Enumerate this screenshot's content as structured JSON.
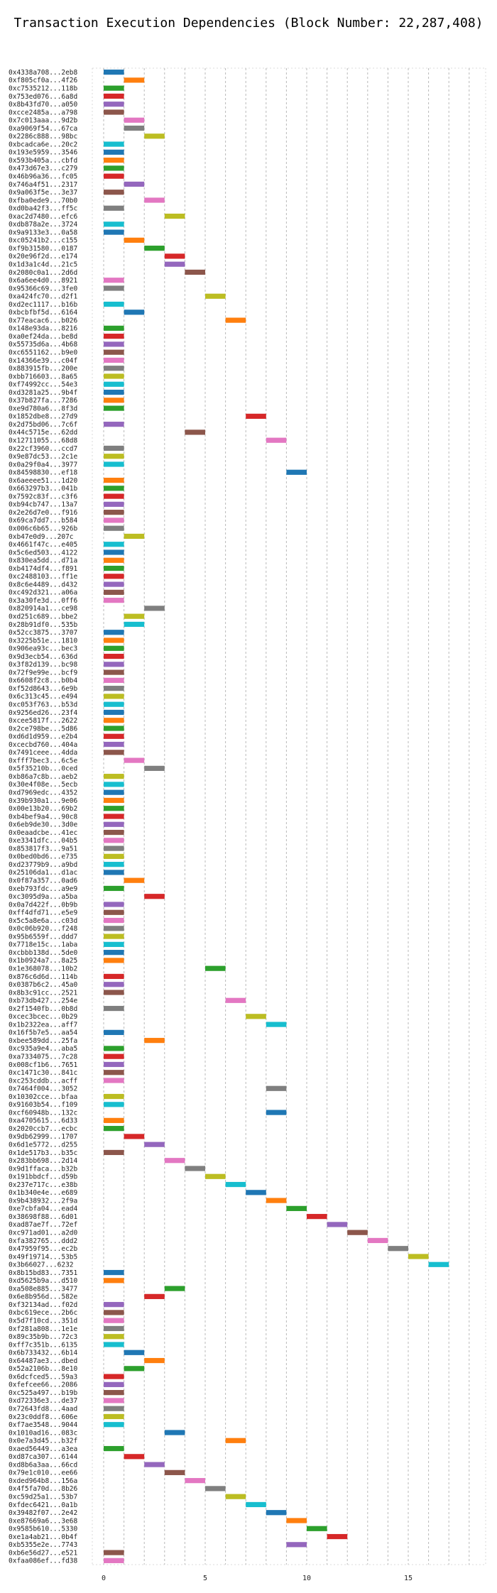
{
  "chart_data": {
    "type": "gantt",
    "title": "Transaction Execution Dependencies (Block Number: 22,287,408)",
    "xlabel": "",
    "ylabel": "",
    "xlim": [
      0,
      19
    ],
    "xticks": [
      0,
      5,
      10,
      15
    ],
    "grid": "x-dashed",
    "colors": [
      "#1f77b4",
      "#ff7f0e",
      "#2ca02c",
      "#d62728",
      "#9467bd",
      "#8c564b",
      "#e377c2",
      "#7f7f7f",
      "#bcbd22",
      "#17becf"
    ],
    "transactions": [
      {
        "label": "0x4338a708...2eb8",
        "start": 0,
        "end": 1
      },
      {
        "label": "0xf805cf0a...4f26",
        "start": 1,
        "end": 2
      },
      {
        "label": "0xc7535212...118b",
        "start": 0,
        "end": 1
      },
      {
        "label": "0x753ed076...6a8d",
        "start": 0,
        "end": 1
      },
      {
        "label": "0x8b43fd70...a050",
        "start": 0,
        "end": 1
      },
      {
        "label": "0xcce2485a...a798",
        "start": 0,
        "end": 1
      },
      {
        "label": "0x7c013aaa...9d2b",
        "start": 1,
        "end": 2
      },
      {
        "label": "0xa9069f54...67ca",
        "start": 1,
        "end": 2
      },
      {
        "label": "0x2286c888...98bc",
        "start": 2,
        "end": 3
      },
      {
        "label": "0xbcadca6e...20c2",
        "start": 0,
        "end": 1
      },
      {
        "label": "0x193e5959...3546",
        "start": 0,
        "end": 1
      },
      {
        "label": "0x593b405a...cbfd",
        "start": 0,
        "end": 1
      },
      {
        "label": "0x473d67e3...c279",
        "start": 0,
        "end": 1
      },
      {
        "label": "0x46b96a36...fc05",
        "start": 0,
        "end": 1
      },
      {
        "label": "0x746a4f51...2317",
        "start": 1,
        "end": 2
      },
      {
        "label": "0x9a063f5e...3e37",
        "start": 0,
        "end": 1
      },
      {
        "label": "0xfba0ede9...70b0",
        "start": 2,
        "end": 3
      },
      {
        "label": "0xd0ba42f3...ff5c",
        "start": 0,
        "end": 1
      },
      {
        "label": "0xac2d7480...efc6",
        "start": 3,
        "end": 4
      },
      {
        "label": "0xdb878a2e...3724",
        "start": 0,
        "end": 1
      },
      {
        "label": "0x9a9133e3...0a58",
        "start": 0,
        "end": 1
      },
      {
        "label": "0xc05241b2...c155",
        "start": 1,
        "end": 2
      },
      {
        "label": "0xf9b31580...0187",
        "start": 2,
        "end": 3
      },
      {
        "label": "0x20e96f2d...e174",
        "start": 3,
        "end": 4
      },
      {
        "label": "0x1d3a1c4d...21c5",
        "start": 3,
        "end": 4
      },
      {
        "label": "0x2080c0a1...2d6d",
        "start": 4,
        "end": 5
      },
      {
        "label": "0x6a6ee4d0...8921",
        "start": 0,
        "end": 1
      },
      {
        "label": "0x95366c69...3fe0",
        "start": 0,
        "end": 1
      },
      {
        "label": "0xa424fc70...d2f1",
        "start": 5,
        "end": 6
      },
      {
        "label": "0xd2ec1117...b16b",
        "start": 0,
        "end": 1
      },
      {
        "label": "0xbcbfbf5d...6164",
        "start": 1,
        "end": 2
      },
      {
        "label": "0x77eacac6...b026",
        "start": 6,
        "end": 7
      },
      {
        "label": "0x148e93da...8216",
        "start": 0,
        "end": 1
      },
      {
        "label": "0xa0ef24da...be8d",
        "start": 0,
        "end": 1
      },
      {
        "label": "0x55735d6a...4b68",
        "start": 0,
        "end": 1
      },
      {
        "label": "0xc6551162...b9e0",
        "start": 0,
        "end": 1
      },
      {
        "label": "0x14366e39...c04f",
        "start": 0,
        "end": 1
      },
      {
        "label": "0x883915fb...200e",
        "start": 0,
        "end": 1
      },
      {
        "label": "0xbb716603...8a65",
        "start": 0,
        "end": 1
      },
      {
        "label": "0xf74992cc...54e3",
        "start": 0,
        "end": 1
      },
      {
        "label": "0xd3281a25...9b4f",
        "start": 0,
        "end": 1
      },
      {
        "label": "0x37b827fa...7286",
        "start": 0,
        "end": 1
      },
      {
        "label": "0xe9d780a6...8f3d",
        "start": 0,
        "end": 1
      },
      {
        "label": "0x1852dbe8...27d9",
        "start": 7,
        "end": 8
      },
      {
        "label": "0x2d75bd06...7c6f",
        "start": 0,
        "end": 1
      },
      {
        "label": "0x44c5715e...62dd",
        "start": 4,
        "end": 5
      },
      {
        "label": "0x12711055...68d8",
        "start": 8,
        "end": 9
      },
      {
        "label": "0x22cf3960...ccd7",
        "start": 0,
        "end": 1
      },
      {
        "label": "0x9e87dc53...2c1e",
        "start": 0,
        "end": 1
      },
      {
        "label": "0x0a29f0a4...3977",
        "start": 0,
        "end": 1
      },
      {
        "label": "0x84598830...ef18",
        "start": 9,
        "end": 10
      },
      {
        "label": "0x6aeeee51...1d20",
        "start": 0,
        "end": 1
      },
      {
        "label": "0x663297b3...041b",
        "start": 0,
        "end": 1
      },
      {
        "label": "0x7592c83f...c3f6",
        "start": 0,
        "end": 1
      },
      {
        "label": "0xb94cb747...13a7",
        "start": 0,
        "end": 1
      },
      {
        "label": "0x2e26d7e0...f916",
        "start": 0,
        "end": 1
      },
      {
        "label": "0x69ca7dd7...b584",
        "start": 0,
        "end": 1
      },
      {
        "label": "0x006c6b65...926b",
        "start": 0,
        "end": 1
      },
      {
        "label": "0xb47e0d9...207c",
        "start": 1,
        "end": 2
      },
      {
        "label": "0x4661f47c...e405",
        "start": 0,
        "end": 1
      },
      {
        "label": "0x5c6ed503...4122",
        "start": 0,
        "end": 1
      },
      {
        "label": "0x830ea5dd...d71a",
        "start": 0,
        "end": 1
      },
      {
        "label": "0xb4174df4...f891",
        "start": 0,
        "end": 1
      },
      {
        "label": "0xc2488103...ff1e",
        "start": 0,
        "end": 1
      },
      {
        "label": "0x8c6e4489...d432",
        "start": 0,
        "end": 1
      },
      {
        "label": "0xc492d321...a06a",
        "start": 0,
        "end": 1
      },
      {
        "label": "0x3a30fe3d...0ff6",
        "start": 0,
        "end": 1
      },
      {
        "label": "0x820914a1...ce98",
        "start": 2,
        "end": 3
      },
      {
        "label": "0xd251c689...bbe2",
        "start": 1,
        "end": 2
      },
      {
        "label": "0x28b91df0...535b",
        "start": 1,
        "end": 2
      },
      {
        "label": "0x52cc3875...3707",
        "start": 0,
        "end": 1
      },
      {
        "label": "0x3225b51e...1810",
        "start": 0,
        "end": 1
      },
      {
        "label": "0x906ea93c...bec3",
        "start": 0,
        "end": 1
      },
      {
        "label": "0x9d3ecb54...636d",
        "start": 0,
        "end": 1
      },
      {
        "label": "0x3f82d139...bc98",
        "start": 0,
        "end": 1
      },
      {
        "label": "0x72f9e99e...bcf9",
        "start": 0,
        "end": 1
      },
      {
        "label": "0x6608f2c8...b0b4",
        "start": 0,
        "end": 1
      },
      {
        "label": "0xf52d8643...6e9b",
        "start": 0,
        "end": 1
      },
      {
        "label": "0x6c313c45...e494",
        "start": 0,
        "end": 1
      },
      {
        "label": "0xc053f763...b53d",
        "start": 0,
        "end": 1
      },
      {
        "label": "0x9256ed26...23f4",
        "start": 0,
        "end": 1
      },
      {
        "label": "0xcee5817f...2622",
        "start": 0,
        "end": 1
      },
      {
        "label": "0x2ce798be...5d86",
        "start": 0,
        "end": 1
      },
      {
        "label": "0xd6d1d959...e2b4",
        "start": 0,
        "end": 1
      },
      {
        "label": "0xcecbd760...404a",
        "start": 0,
        "end": 1
      },
      {
        "label": "0x7491ceee...4dda",
        "start": 0,
        "end": 1
      },
      {
        "label": "0xfff7bec3...6c5e",
        "start": 1,
        "end": 2
      },
      {
        "label": "0x5f35210b...0ced",
        "start": 2,
        "end": 3
      },
      {
        "label": "0xb86a7c8b...aeb2",
        "start": 0,
        "end": 1
      },
      {
        "label": "0x30e4f08e...5ecb",
        "start": 0,
        "end": 1
      },
      {
        "label": "0xd7969edc...4352",
        "start": 0,
        "end": 1
      },
      {
        "label": "0x39b930a1...9e06",
        "start": 0,
        "end": 1
      },
      {
        "label": "0x00e13b20...69b2",
        "start": 0,
        "end": 1
      },
      {
        "label": "0xb4bef9a4...90c8",
        "start": 0,
        "end": 1
      },
      {
        "label": "0x6eb9de30...3d0e",
        "start": 0,
        "end": 1
      },
      {
        "label": "0x0eaadcbe...41ec",
        "start": 0,
        "end": 1
      },
      {
        "label": "0xe3341dfc...04b5",
        "start": 0,
        "end": 1
      },
      {
        "label": "0x853817f3...9a51",
        "start": 0,
        "end": 1
      },
      {
        "label": "0x0bed0bd6...e735",
        "start": 0,
        "end": 1
      },
      {
        "label": "0xd23779b9...a9bd",
        "start": 0,
        "end": 1
      },
      {
        "label": "0x25106da1...d1ac",
        "start": 0,
        "end": 1
      },
      {
        "label": "0x0f87a357...0ad6",
        "start": 1,
        "end": 2
      },
      {
        "label": "0xeb793fdc...a9e9",
        "start": 0,
        "end": 1
      },
      {
        "label": "0xc3095d9a...a5ba",
        "start": 2,
        "end": 3
      },
      {
        "label": "0x0a7d422f...0b9b",
        "start": 0,
        "end": 1
      },
      {
        "label": "0xff4dfd71...e5e9",
        "start": 0,
        "end": 1
      },
      {
        "label": "0x5c5a8e6a...c03d",
        "start": 0,
        "end": 1
      },
      {
        "label": "0x0c06b920...f248",
        "start": 0,
        "end": 1
      },
      {
        "label": "0x95b6559f...ddd7",
        "start": 0,
        "end": 1
      },
      {
        "label": "0x7718e15c...1aba",
        "start": 0,
        "end": 1
      },
      {
        "label": "0xcbbb138d...5de0",
        "start": 0,
        "end": 1
      },
      {
        "label": "0x1b0924a7...8a25",
        "start": 0,
        "end": 1
      },
      {
        "label": "0x1e368078...10b2",
        "start": 5,
        "end": 6
      },
      {
        "label": "0x876c6d6d...114b",
        "start": 0,
        "end": 1
      },
      {
        "label": "0x0387b6c2...45a0",
        "start": 0,
        "end": 1
      },
      {
        "label": "0x8b3c91cc...2521",
        "start": 0,
        "end": 1
      },
      {
        "label": "0xb73db427...254e",
        "start": 6,
        "end": 7
      },
      {
        "label": "0x2f1540fb...0b8d",
        "start": 0,
        "end": 1
      },
      {
        "label": "0xcec3bcec...0b29",
        "start": 7,
        "end": 8
      },
      {
        "label": "0x1b2322ea...aff7",
        "start": 8,
        "end": 9
      },
      {
        "label": "0x16f5b7e5...aa54",
        "start": 0,
        "end": 1
      },
      {
        "label": "0xbee589dd...25fa",
        "start": 2,
        "end": 3
      },
      {
        "label": "0xc935a9e4...aba5",
        "start": 0,
        "end": 1
      },
      {
        "label": "0xa7334075...7c28",
        "start": 0,
        "end": 1
      },
      {
        "label": "0x008cf1b6...7651",
        "start": 0,
        "end": 1
      },
      {
        "label": "0xc1471c30...841c",
        "start": 0,
        "end": 1
      },
      {
        "label": "0xc253cddb...acff",
        "start": 0,
        "end": 1
      },
      {
        "label": "0x7464f004...3052",
        "start": 8,
        "end": 9
      },
      {
        "label": "0x10302cce...bfaa",
        "start": 0,
        "end": 1
      },
      {
        "label": "0x91603b54...f109",
        "start": 0,
        "end": 1
      },
      {
        "label": "0xcf60948b...132c",
        "start": 8,
        "end": 9
      },
      {
        "label": "0xa4705615...6d33",
        "start": 0,
        "end": 1
      },
      {
        "label": "0x2020ccb7...ecbc",
        "start": 0,
        "end": 1
      },
      {
        "label": "0x9db62999...1707",
        "start": 1,
        "end": 2
      },
      {
        "label": "0x6d1e5772...d255",
        "start": 2,
        "end": 3
      },
      {
        "label": "0x1de517b3...b35c",
        "start": 0,
        "end": 1
      },
      {
        "label": "0x283bb698...2d14",
        "start": 3,
        "end": 4
      },
      {
        "label": "0x9d1ffaca...b32b",
        "start": 4,
        "end": 5
      },
      {
        "label": "0x191bbdcf...d59b",
        "start": 5,
        "end": 6
      },
      {
        "label": "0x237e717c...e38b",
        "start": 6,
        "end": 7
      },
      {
        "label": "0x1b340e4e...e689",
        "start": 7,
        "end": 8
      },
      {
        "label": "0x9b438932...2f9a",
        "start": 8,
        "end": 9
      },
      {
        "label": "0xe7cbfa04...ead4",
        "start": 9,
        "end": 10
      },
      {
        "label": "0x38698f88...6d01",
        "start": 10,
        "end": 11
      },
      {
        "label": "0xad87ae7f...72ef",
        "start": 11,
        "end": 12
      },
      {
        "label": "0xc971ad01...a2d0",
        "start": 12,
        "end": 13
      },
      {
        "label": "0xfa382765...ddd2",
        "start": 13,
        "end": 14
      },
      {
        "label": "0x47959f95...ec2b",
        "start": 14,
        "end": 15
      },
      {
        "label": "0x49f19714...53b5",
        "start": 15,
        "end": 16
      },
      {
        "label": "0x3b66027...6232",
        "start": 16,
        "end": 17
      },
      {
        "label": "0x8b15bd83...7351",
        "start": 0,
        "end": 1
      },
      {
        "label": "0xd5625b9a...d510",
        "start": 0,
        "end": 1
      },
      {
        "label": "0xa508e885...3477",
        "start": 3,
        "end": 4
      },
      {
        "label": "0x6e8b956d...582e",
        "start": 2,
        "end": 3
      },
      {
        "label": "0xf32134ad...f02d",
        "start": 0,
        "end": 1
      },
      {
        "label": "0xbc619ece...2b6c",
        "start": 0,
        "end": 1
      },
      {
        "label": "0x5d7f10cd...351d",
        "start": 0,
        "end": 1
      },
      {
        "label": "0xf281a808...1e1e",
        "start": 0,
        "end": 1
      },
      {
        "label": "0x89c35b9b...72c3",
        "start": 0,
        "end": 1
      },
      {
        "label": "0xff7c351b...6135",
        "start": 0,
        "end": 1
      },
      {
        "label": "0x6b733432...6b14",
        "start": 1,
        "end": 2
      },
      {
        "label": "0x64487ae3...dbed",
        "start": 2,
        "end": 3
      },
      {
        "label": "0x52a2106b...8e10",
        "start": 1,
        "end": 2
      },
      {
        "label": "0x6dcfced5...59a3",
        "start": 0,
        "end": 1
      },
      {
        "label": "0xfefcee66...2086",
        "start": 0,
        "end": 1
      },
      {
        "label": "0xc525a497...b19b",
        "start": 0,
        "end": 1
      },
      {
        "label": "0xd72336e3...de37",
        "start": 0,
        "end": 1
      },
      {
        "label": "0x72643fd8...4aad",
        "start": 0,
        "end": 1
      },
      {
        "label": "0x23c0ddf8...606e",
        "start": 0,
        "end": 1
      },
      {
        "label": "0xf7ae3548...9044",
        "start": 0,
        "end": 1
      },
      {
        "label": "0x1010ad16...083c",
        "start": 3,
        "end": 4
      },
      {
        "label": "0x0e7a3d45...b32f",
        "start": 6,
        "end": 7
      },
      {
        "label": "0xaed56449...a3ea",
        "start": 0,
        "end": 1
      },
      {
        "label": "0xd87ca307...6144",
        "start": 1,
        "end": 2
      },
      {
        "label": "0xd8b6a3aa...66cd",
        "start": 2,
        "end": 3
      },
      {
        "label": "0x79e1c010...ee66",
        "start": 3,
        "end": 4
      },
      {
        "label": "0xded964b8...156a",
        "start": 4,
        "end": 5
      },
      {
        "label": "0x4f5fa70d...8b26",
        "start": 5,
        "end": 6
      },
      {
        "label": "0xc59d25a1...53b7",
        "start": 6,
        "end": 7
      },
      {
        "label": "0xfdec6421...0a1b",
        "start": 7,
        "end": 8
      },
      {
        "label": "0x39482f07...2e42",
        "start": 8,
        "end": 9
      },
      {
        "label": "0xe87669a6...3e68",
        "start": 9,
        "end": 10
      },
      {
        "label": "0x9585b610...5330",
        "start": 10,
        "end": 11
      },
      {
        "label": "0xe1a4ab21...0b4f",
        "start": 11,
        "end": 12
      },
      {
        "label": "0xb5355e2e...7743",
        "start": 9,
        "end": 10
      },
      {
        "label": "0xb6e56d27...e521",
        "start": 0,
        "end": 1
      },
      {
        "label": "0xfaa086ef...fd38",
        "start": 0,
        "end": 1
      }
    ]
  }
}
